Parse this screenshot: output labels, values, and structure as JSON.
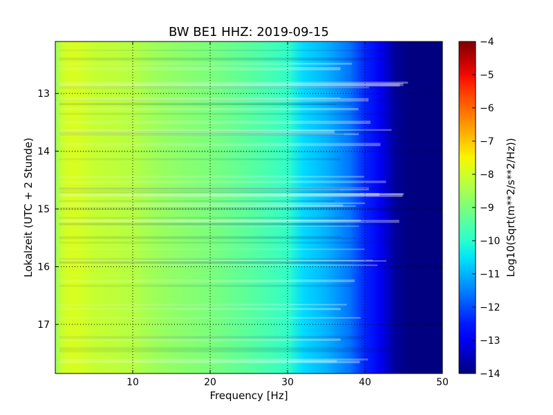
{
  "chart_data": {
    "type": "heatmap",
    "title": "BW BE1 HHZ: 2019-09-15",
    "xlabel": "Frequency [Hz]",
    "ylabel": "Lokalzeit (UTC + 2 Stunde)",
    "xlim": [
      0,
      50
    ],
    "ylim": [
      12.1,
      17.85
    ],
    "y_inverted": true,
    "grid": true,
    "colormap": "jet",
    "x_ticks": [
      10,
      20,
      30,
      40,
      50
    ],
    "x_tick_labels": [
      "10",
      "20",
      "30",
      "40",
      "50"
    ],
    "y_ticks": [
      13,
      14,
      15,
      16,
      17
    ],
    "y_tick_labels": [
      "13",
      "14",
      "15",
      "16",
      "17"
    ],
    "colorbar": {
      "label": "Log10(Sqrt(m**2/s**2/Hz))",
      "range": [
        -14,
        -4
      ],
      "ticks": [
        -4,
        -5,
        -6,
        -7,
        -8,
        -9,
        -10,
        -11,
        -12,
        -13,
        -14
      ],
      "tick_labels": [
        "−4",
        "−5",
        "−6",
        "−7",
        "−8",
        "−9",
        "−10",
        "−11",
        "−12",
        "−13",
        "−14"
      ]
    },
    "spectral_profile": {
      "frequency_hz": [
        0,
        1,
        2,
        3,
        5,
        8,
        10,
        13,
        16,
        20,
        25,
        28,
        30,
        32,
        35,
        38,
        40,
        42,
        44,
        46,
        48,
        50
      ],
      "log10_amplitude": [
        -8.6,
        -8.0,
        -7.9,
        -7.9,
        -8.1,
        -8.2,
        -8.3,
        -8.6,
        -8.8,
        -9.0,
        -9.4,
        -9.7,
        -9.9,
        -10.6,
        -11.0,
        -11.6,
        -12.4,
        -13.0,
        -13.8,
        -14.0,
        -14.0,
        -14.0
      ]
    }
  }
}
